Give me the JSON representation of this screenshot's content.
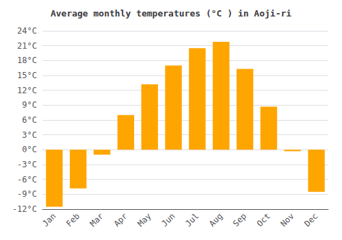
{
  "chart_data": {
    "type": "bar",
    "title": "Average monthly temperatures (°C ) in Aoji-ri",
    "categories": [
      "Jan",
      "Feb",
      "Mar",
      "Apr",
      "May",
      "Jun",
      "Jul",
      "Aug",
      "Sep",
      "Oct",
      "Nov",
      "Dec"
    ],
    "values": [
      -11.5,
      -7.8,
      -1.0,
      7.0,
      13.2,
      17.0,
      20.5,
      21.8,
      16.3,
      8.7,
      -0.3,
      -8.5
    ],
    "color": "#FFA500",
    "ylim": [
      -12,
      24
    ],
    "yticks": [
      {
        "value": -12,
        "label": "-12°C"
      },
      {
        "value": -9,
        "label": "-9°C"
      },
      {
        "value": -6,
        "label": "-6°C"
      },
      {
        "value": -3,
        "label": "-3°C"
      },
      {
        "value": 0,
        "label": "0°C"
      },
      {
        "value": 3,
        "label": "3°C"
      },
      {
        "value": 6,
        "label": "6°C"
      },
      {
        "value": 9,
        "label": "9°C"
      },
      {
        "value": 12,
        "label": "12°C"
      },
      {
        "value": 15,
        "label": "15°C"
      },
      {
        "value": 18,
        "label": "18°C"
      },
      {
        "value": 21,
        "label": "21°C"
      },
      {
        "value": 24,
        "label": "24°C"
      }
    ],
    "grid": true
  }
}
